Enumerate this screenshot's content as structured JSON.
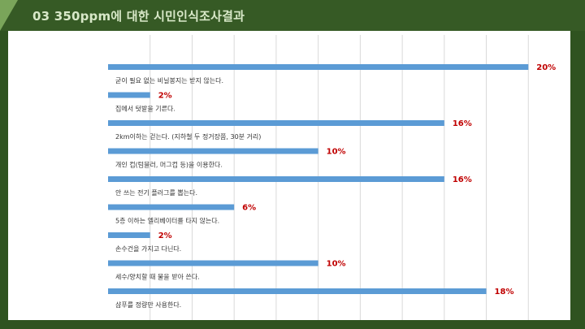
{
  "slide": {
    "title": "03 350ppm에 대한 시민인식조사결과",
    "colors": {
      "background": "#2f5320",
      "header": "#365a25",
      "accent": "#7aa55a",
      "bar": "#5b9bd5",
      "value_label": "#c00000"
    }
  },
  "chart_data": {
    "type": "bar",
    "orientation": "horizontal",
    "categories": [
      "굳이 필요 없는 비닐봉지는 받지 않는다.",
      "집에서 텃밭을 기른다.",
      "2km이하는 걷는다. (지하철 두  정거장쯤, 30분 거리)",
      "개인 컵(텀블러, 머그컵 등)을 이용한다.",
      "안 쓰는 전기 플러그를 뽑는다.",
      "5층 이하는 엘리베이터를 타지 않는다.",
      "손수건을 가지고 다닌다.",
      "세수/양치할 때 물을 받아 쓴다.",
      "샴푸를 정량만 사용한다."
    ],
    "values": [
      20,
      2,
      16,
      10,
      16,
      6,
      2,
      10,
      18
    ],
    "value_labels": [
      "20%",
      "2%",
      "16%",
      "10%",
      "16%",
      "6%",
      "2%",
      "10%",
      "18%"
    ],
    "xlim": [
      0,
      22
    ],
    "grid": true
  }
}
